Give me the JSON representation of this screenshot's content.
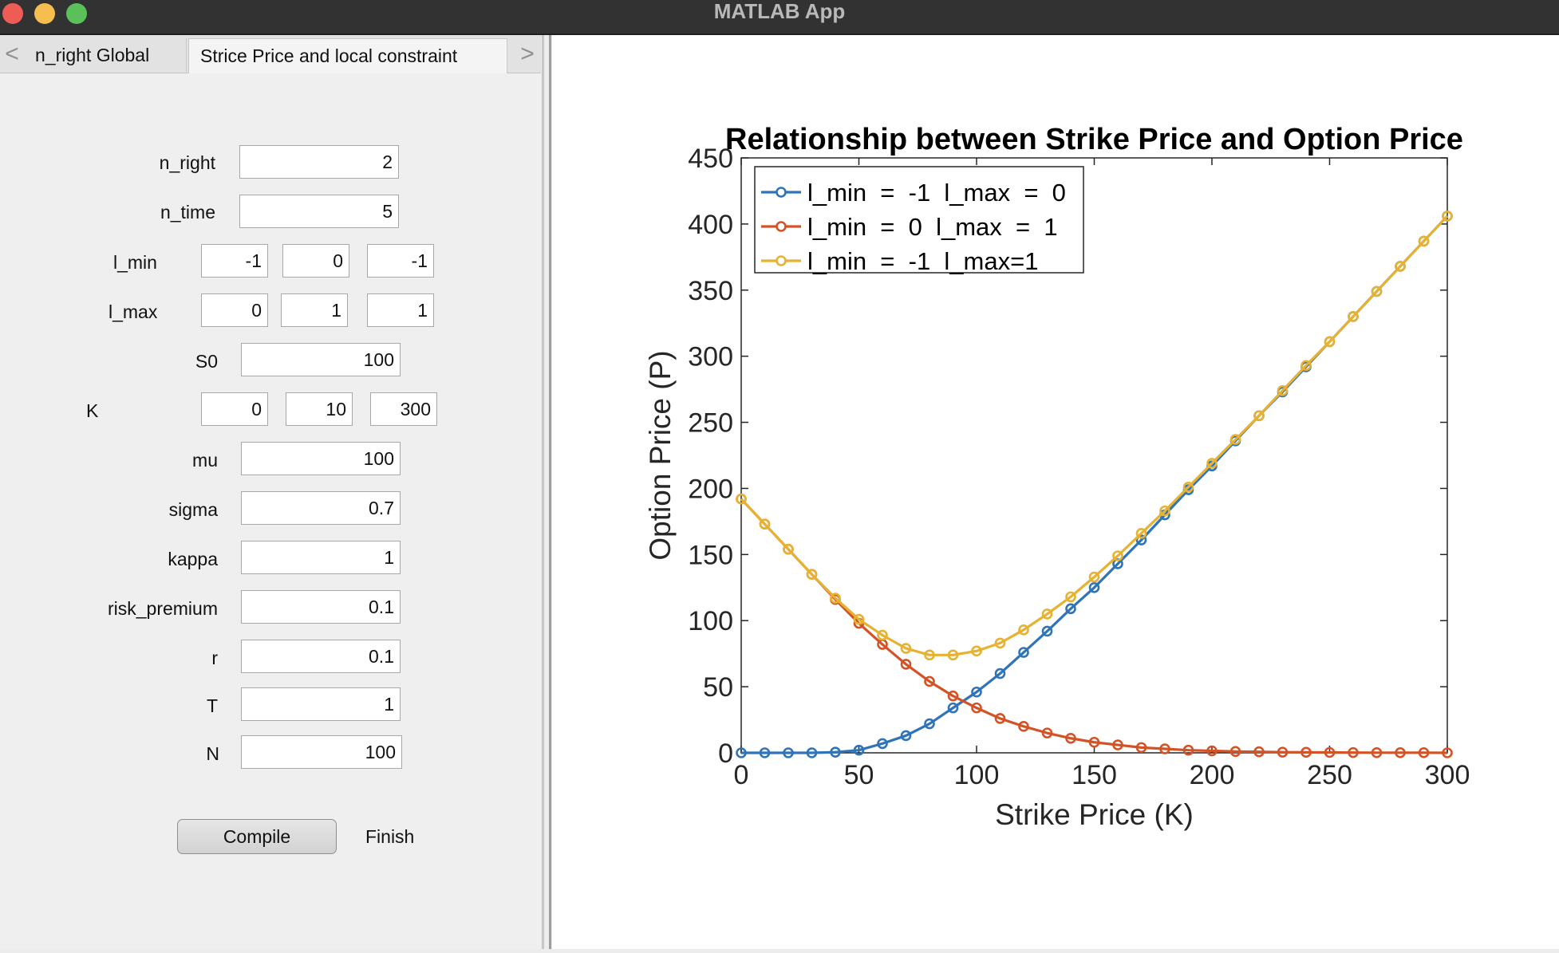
{
  "window": {
    "title": "MATLAB App"
  },
  "tabs": {
    "prev_arrow": "<",
    "next_arrow": ">",
    "items": [
      {
        "label": "n_right Global",
        "active": false
      },
      {
        "label": "Strice Price and local constraint",
        "active": true
      }
    ]
  },
  "form": {
    "n_right": {
      "label": "n_right",
      "value": "2"
    },
    "n_time": {
      "label": "n_time",
      "value": "5"
    },
    "l_min": {
      "label": "l_min",
      "values": [
        "-1",
        "0",
        "-1"
      ]
    },
    "l_max": {
      "label": "l_max",
      "values": [
        "0",
        "1",
        "1"
      ]
    },
    "S0": {
      "label": "S0",
      "value": "100"
    },
    "K": {
      "label": "K",
      "values": [
        "0",
        "10",
        "300"
      ]
    },
    "mu": {
      "label": "mu",
      "value": "100"
    },
    "sigma": {
      "label": "sigma",
      "value": "0.7"
    },
    "kappa": {
      "label": "kappa",
      "value": "1"
    },
    "risk_premium": {
      "label": "risk_premium",
      "value": "0.1"
    },
    "r": {
      "label": "r",
      "value": "0.1"
    },
    "T": {
      "label": "T",
      "value": "1"
    },
    "N": {
      "label": "N",
      "value": "100"
    },
    "compile_label": "Compile",
    "status": "Finish"
  },
  "chart_data": {
    "type": "line",
    "title": "Relationship between Strike Price and Option Price",
    "xlabel": "Strike Price (K)",
    "ylabel": "Option Price (P)",
    "xlim": [
      0,
      300
    ],
    "ylim": [
      0,
      450
    ],
    "xticks": [
      "0",
      "50",
      "100",
      "150",
      "200",
      "250",
      "300"
    ],
    "yticks": [
      "0",
      "50",
      "100",
      "150",
      "200",
      "250",
      "300",
      "350",
      "400",
      "450"
    ],
    "grid": false,
    "legend_position": "top-left",
    "marker": "circle",
    "x": [
      0,
      10,
      20,
      30,
      40,
      50,
      60,
      70,
      80,
      90,
      100,
      110,
      120,
      130,
      140,
      150,
      160,
      170,
      180,
      190,
      200,
      210,
      220,
      230,
      240,
      250,
      260,
      270,
      280,
      290,
      300
    ],
    "series": [
      {
        "name": "l_min  =  -1  l_max  =  0",
        "color": "#2f73b8",
        "values": [
          0,
          0,
          0,
          0,
          0.5,
          2,
          7,
          13,
          22,
          34,
          46,
          60,
          76,
          92,
          109,
          125,
          143,
          161,
          180,
          199,
          217,
          236,
          255,
          273,
          292,
          311,
          330,
          349,
          368,
          387,
          406
        ]
      },
      {
        "name": "l_min  =  0  l_max  =  1",
        "color": "#d35327",
        "values": [
          192,
          173,
          154,
          135,
          116,
          98,
          82,
          67,
          54,
          43,
          34,
          26,
          20,
          15,
          11,
          8,
          6,
          4,
          3,
          2,
          1.5,
          1,
          0.8,
          0.5,
          0.4,
          0.3,
          0.2,
          0.1,
          0.1,
          0.1,
          0
        ]
      },
      {
        "name": "l_min  =  -1  l_max=1",
        "color": "#e7b132",
        "values": [
          192,
          173,
          154,
          135,
          117,
          101,
          89,
          79,
          74,
          74,
          77,
          83,
          93,
          105,
          118,
          133,
          149,
          166,
          183,
          201,
          219,
          237,
          255,
          274,
          293,
          311,
          330,
          349,
          368,
          387,
          406
        ]
      }
    ]
  }
}
